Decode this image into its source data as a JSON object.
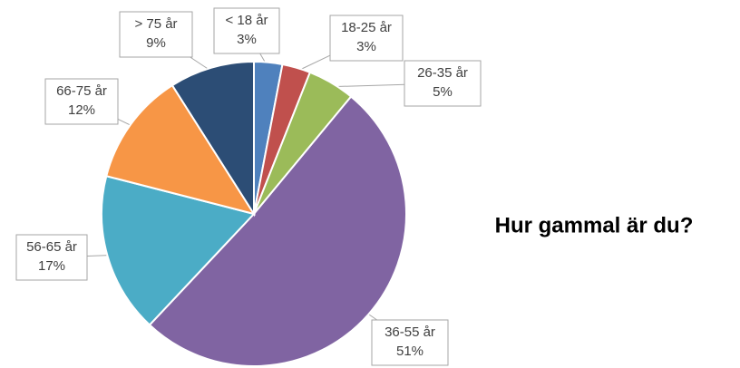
{
  "chart_data": {
    "type": "pie",
    "title": "Hur gammal är du?",
    "categories": [
      "< 18 år",
      "18-25 år",
      "26-35 år",
      "36-55 år",
      "56-65 år",
      "66-75 år",
      "> 75 år"
    ],
    "values": [
      3,
      3,
      5,
      51,
      17,
      12,
      9
    ],
    "value_labels": [
      "3%",
      "3%",
      "5%",
      "51%",
      "17%",
      "12%",
      "9%"
    ],
    "colors": [
      "#4f81bd",
      "#c0504d",
      "#9bbb59",
      "#8064a2",
      "#4bacc6",
      "#f79646",
      "#2c4d75"
    ]
  }
}
